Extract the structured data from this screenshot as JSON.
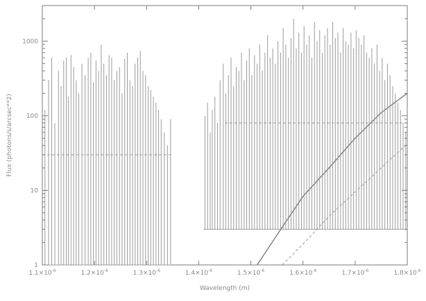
{
  "chart_data": {
    "type": "line",
    "title": "",
    "xlabel": "Wavelength (m)",
    "ylabel": "Flux (photons/s/arcsec**2)",
    "xlim": [
      1.1e-06,
      1.8e-06
    ],
    "ylim": [
      1,
      3000
    ],
    "yscale": "log",
    "grid": false,
    "x_ticks": [
      {
        "value": 1.1e-06,
        "mantissa": "1.1×10",
        "exp": "-6"
      },
      {
        "value": 1.2e-06,
        "mantissa": "1.2×10",
        "exp": "-6"
      },
      {
        "value": 1.3e-06,
        "mantissa": "1.3×10",
        "exp": "-6"
      },
      {
        "value": 1.4e-06,
        "mantissa": "1.4×10",
        "exp": "-6"
      },
      {
        "value": 1.5e-06,
        "mantissa": "1.5×10",
        "exp": "-6"
      },
      {
        "value": 1.6e-06,
        "mantissa": "1.6×10",
        "exp": "-6"
      },
      {
        "value": 1.7e-06,
        "mantissa": "1.7×10",
        "exp": "-6"
      },
      {
        "value": 1.8e-06,
        "mantissa": "1.8×10",
        "exp": "-6"
      }
    ],
    "y_ticks": [
      {
        "value": 1,
        "label": "1"
      },
      {
        "value": 10,
        "label": "10"
      },
      {
        "value": 100,
        "label": "100"
      },
      {
        "value": 1000,
        "label": "1000"
      }
    ],
    "series": [
      {
        "kind": "emission-lines",
        "color": "#9a9a9a",
        "base": 1,
        "x": [
          1.105e-06,
          1.112e-06,
          1.118e-06,
          1.124e-06,
          1.131e-06,
          1.136e-06,
          1.141e-06,
          1.146e-06,
          1.15e-06,
          1.155e-06,
          1.16e-06,
          1.165e-06,
          1.17e-06,
          1.176e-06,
          1.182e-06,
          1.188e-06,
          1.193e-06,
          1.198e-06,
          1.203e-06,
          1.208e-06,
          1.213e-06,
          1.218e-06,
          1.223e-06,
          1.228e-06,
          1.233e-06,
          1.238e-06,
          1.243e-06,
          1.248e-06,
          1.253e-06,
          1.258e-06,
          1.263e-06,
          1.268e-06,
          1.273e-06,
          1.278e-06,
          1.283e-06,
          1.288e-06,
          1.293e-06,
          1.298e-06,
          1.303e-06,
          1.308e-06,
          1.313e-06,
          1.318e-06,
          1.323e-06,
          1.328e-06,
          1.334e-06,
          1.34e-06,
          1.346e-06
        ],
        "y": [
          120,
          300,
          600,
          80,
          400,
          250,
          550,
          600,
          180,
          650,
          450,
          300,
          200,
          500,
          350,
          600,
          700,
          280,
          550,
          400,
          900,
          500,
          350,
          650,
          600,
          300,
          400,
          450,
          200,
          580,
          700,
          300,
          250,
          500,
          600,
          750,
          400,
          350,
          250,
          220,
          180,
          150,
          120,
          90,
          60,
          40,
          90
        ]
      },
      {
        "kind": "emission-lines",
        "color": "#9a9a9a",
        "base": 3,
        "x": [
          1.412e-06,
          1.417e-06,
          1.422e-06,
          1.426e-06,
          1.431e-06,
          1.436e-06,
          1.441e-06,
          1.447e-06,
          1.452e-06,
          1.457e-06,
          1.462e-06,
          1.467e-06,
          1.472e-06,
          1.477e-06,
          1.482e-06,
          1.487e-06,
          1.492e-06,
          1.497e-06,
          1.502e-06,
          1.507e-06,
          1.512e-06,
          1.517e-06,
          1.522e-06,
          1.527e-06,
          1.532e-06,
          1.537e-06,
          1.542e-06,
          1.547e-06,
          1.552e-06,
          1.557e-06,
          1.562e-06,
          1.567e-06,
          1.572e-06,
          1.577e-06,
          1.582e-06,
          1.587e-06,
          1.592e-06,
          1.597e-06,
          1.602e-06,
          1.607e-06,
          1.612e-06,
          1.617e-06,
          1.622e-06,
          1.627e-06,
          1.632e-06,
          1.637e-06,
          1.642e-06,
          1.647e-06,
          1.652e-06,
          1.657e-06,
          1.662e-06,
          1.667e-06,
          1.672e-06,
          1.677e-06,
          1.682e-06,
          1.687e-06,
          1.692e-06,
          1.697e-06,
          1.702e-06,
          1.707e-06,
          1.712e-06,
          1.717e-06,
          1.722e-06,
          1.727e-06,
          1.732e-06,
          1.737e-06,
          1.742e-06,
          1.747e-06,
          1.752e-06,
          1.757e-06,
          1.762e-06,
          1.767e-06,
          1.772e-06,
          1.777e-06,
          1.782e-06,
          1.787e-06,
          1.792e-06,
          1.797e-06
        ],
        "y": [
          100,
          150,
          60,
          120,
          180,
          80,
          300,
          500,
          200,
          350,
          600,
          250,
          450,
          400,
          700,
          300,
          550,
          800,
          350,
          650,
          500,
          900,
          400,
          700,
          1200,
          600,
          800,
          500,
          1000,
          700,
          1500,
          900,
          600,
          1100,
          2000,
          800,
          1300,
          700,
          1600,
          900,
          1200,
          600,
          1800,
          1000,
          1400,
          700,
          1200,
          1500,
          900,
          1800,
          1100,
          1300,
          700,
          1500,
          1000,
          900,
          1300,
          800,
          1400,
          1100,
          900,
          1200,
          700,
          600,
          800,
          500,
          900,
          400,
          600,
          300,
          500,
          350,
          250,
          200,
          150,
          120,
          80,
          60
        ]
      },
      {
        "kind": "continuum",
        "color": "#9a9a9a",
        "style": "dashed",
        "x": [
          1.1e-06,
          1.35e-06
        ],
        "y": [
          30,
          30
        ]
      },
      {
        "kind": "continuum",
        "color": "#9a9a9a",
        "style": "dashed",
        "x": [
          1.45e-06,
          1.8e-06
        ],
        "y": [
          80,
          80
        ]
      },
      {
        "kind": "thermal",
        "color": "#8a8a8a",
        "style": "solid",
        "x": [
          1.512e-06,
          1.56e-06,
          1.6e-06,
          1.65e-06,
          1.7e-06,
          1.75e-06,
          1.8e-06
        ],
        "y": [
          1,
          3.2,
          8.3,
          20,
          50,
          110,
          200
        ]
      },
      {
        "kind": "thermal",
        "color": "#9a9a9a",
        "style": "dashed",
        "x": [
          1.56e-06,
          1.6e-06,
          1.65e-06,
          1.7e-06,
          1.75e-06,
          1.8e-06
        ],
        "y": [
          1,
          1.9,
          4.5,
          9.5,
          20,
          42
        ]
      }
    ]
  }
}
